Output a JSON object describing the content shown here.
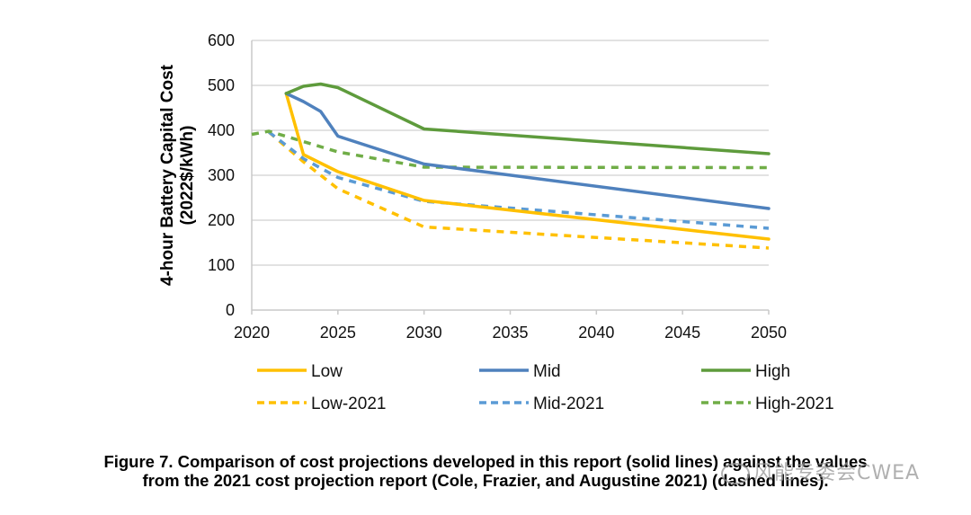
{
  "chart_data": {
    "type": "line",
    "title": "",
    "xlabel": "",
    "ylabel": "4-hour Battery Capital Cost",
    "ylabel_units": "(2022$/kWh)",
    "xlim": [
      2020,
      2050
    ],
    "ylim": [
      0,
      600
    ],
    "x_ticks": [
      2020,
      2025,
      2030,
      2035,
      2040,
      2045,
      2050
    ],
    "y_ticks": [
      0,
      100,
      200,
      300,
      400,
      500,
      600
    ],
    "grid": "horizontal",
    "legend_position": "bottom",
    "series": [
      {
        "name": "Low",
        "color": "#FFC000",
        "style": "solid",
        "x": [
          2022,
          2023,
          2025,
          2030,
          2050
        ],
        "y": [
          482,
          346,
          308,
          244,
          158
        ]
      },
      {
        "name": "Mid",
        "color": "#4F81BD",
        "style": "solid",
        "x": [
          2022,
          2023,
          2024,
          2025,
          2030,
          2050
        ],
        "y": [
          482,
          464,
          442,
          387,
          325,
          226
        ]
      },
      {
        "name": "High",
        "color": "#5E9B3C",
        "style": "solid",
        "x": [
          2022,
          2023,
          2024,
          2025,
          2030,
          2050
        ],
        "y": [
          482,
          498,
          503,
          495,
          403,
          348
        ]
      },
      {
        "name": "Low-2021",
        "color": "#FFC000",
        "style": "dashed",
        "x": [
          2021,
          2023,
          2025,
          2030,
          2050
        ],
        "y": [
          396,
          330,
          270,
          185,
          138
        ]
      },
      {
        "name": "Mid-2021",
        "color": "#5B9BD5",
        "style": "dashed",
        "x": [
          2021,
          2023,
          2025,
          2030,
          2050
        ],
        "y": [
          396,
          337,
          295,
          242,
          182
        ]
      },
      {
        "name": "High-2021",
        "color": "#70AD47",
        "style": "dashed",
        "x": [
          2020,
          2021,
          2023,
          2025,
          2030,
          2050
        ],
        "y": [
          391,
          398,
          375,
          352,
          318,
          317
        ]
      }
    ]
  },
  "caption": {
    "line1": "Figure 7. Comparison of cost projections developed in this report (solid lines) against the values",
    "line2": "from the 2021 cost projection report (Cole, Frazier, and Augustine 2021) (dashed lines)."
  },
  "watermark": "风能专委会CWEA"
}
